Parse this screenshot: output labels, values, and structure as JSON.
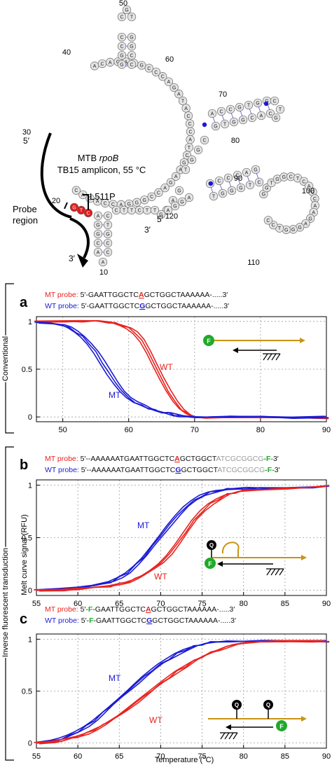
{
  "structure": {
    "title_prefix": "MTB",
    "title_gene": "rpoB",
    "subtitle": "TB15 amplicon, 55 °C",
    "mutation_label": "L511P",
    "probe_region_label_line1": "Probe",
    "probe_region_label_line2": "region",
    "end_5_top": "5′",
    "end_5_bottom": "5′",
    "end_3_top": "3′",
    "end_3_bottom": "3′",
    "pos_labels": [
      "10",
      "20",
      "30",
      "40",
      "50",
      "60",
      "70",
      "80",
      "90",
      "100",
      "110",
      "120"
    ],
    "upper_3prime_seq": [
      "C",
      "T",
      "T",
      "C",
      "T",
      "T"
    ],
    "highlight_color": "#dd1c1c",
    "highlight_nts": [
      "G",
      "T",
      "C"
    ]
  },
  "section_labels": {
    "conventional": "Conventional",
    "inverse": "Inverse fluorescent transduction"
  },
  "colors": {
    "mt": "#e8231f",
    "wt": "#1a1ad4",
    "probe_line": "#c99414",
    "fluor": "#1faa2a"
  },
  "legend_marks": {
    "fluor": "F",
    "quencher": "Q"
  },
  "chart_data": [
    {
      "panel": "a",
      "type": "line",
      "probes": [
        {
          "label": "MT probe:",
          "seq_before": "5′-GAATTGGCTC",
          "snp": "A",
          "seq_after": "GCTGGCTAAAAAA-",
          "tail": ".....3′"
        },
        {
          "label": "WT probe:",
          "seq_before": "5′-GAATTGGCTC",
          "snp": "G",
          "seq_after": "GCTGGCTAAAAAA-",
          "tail": ".....3′"
        }
      ],
      "xlim": [
        46,
        90
      ],
      "ylim": [
        -0.05,
        1.05
      ],
      "xticks": [
        "50",
        "60",
        "70",
        "80",
        "90"
      ],
      "yticks": [
        "0",
        "0.5",
        "1"
      ],
      "series": [
        {
          "name": "WT",
          "color": "#e8231f",
          "x": [
            46,
            50,
            53,
            55,
            57,
            58,
            59,
            60,
            61,
            62,
            63,
            64,
            65,
            66,
            67,
            68,
            69,
            70,
            72,
            75,
            80,
            85,
            90
          ],
          "y": [
            1.0,
            1.0,
            1.0,
            1.0,
            0.99,
            0.98,
            0.96,
            0.93,
            0.88,
            0.8,
            0.68,
            0.54,
            0.4,
            0.27,
            0.16,
            0.08,
            0.03,
            0.0,
            -0.01,
            0.0,
            0.0,
            0.0,
            -0.01
          ]
        },
        {
          "name": "MT",
          "color": "#1a1ad4",
          "x": [
            46,
            48,
            50,
            51,
            52,
            53,
            54,
            55,
            56,
            57,
            58,
            59,
            60,
            61,
            62,
            63,
            64,
            65,
            66,
            67,
            68,
            69,
            70,
            72,
            75,
            80,
            85,
            90
          ],
          "y": [
            0.99,
            0.98,
            0.96,
            0.93,
            0.89,
            0.84,
            0.77,
            0.68,
            0.57,
            0.46,
            0.36,
            0.27,
            0.2,
            0.15,
            0.12,
            0.09,
            0.07,
            0.05,
            0.04,
            0.02,
            0.01,
            0.01,
            0.0,
            0.0,
            0.0,
            0.0,
            -0.01,
            0.0
          ]
        }
      ]
    },
    {
      "panel": "b",
      "type": "line",
      "ylabel": "Melt curve signal (RFU)",
      "probes": [
        {
          "label": "MT probe:",
          "seq_before": "5′--AAAAAATGAATTGGCTC",
          "snp": "A",
          "seq_after": "GCTGGCT",
          "gray": "ATCGCGGCG",
          "fluor": "-F-",
          "tail": "3′"
        },
        {
          "label": "WT probe:",
          "seq_before": "5′--AAAAAATGAATTGGCTC",
          "snp": "G",
          "seq_after": "GCTGGCT",
          "gray": "ATCGCGGCG",
          "fluor": "-F-",
          "tail": "3′"
        }
      ],
      "xlim": [
        55,
        90
      ],
      "ylim": [
        -0.05,
        1.05
      ],
      "xticks": [
        "55",
        "60",
        "65",
        "70",
        "75",
        "80",
        "85",
        "90"
      ],
      "yticks": [
        "0",
        "0.5",
        "1"
      ],
      "series": [
        {
          "name": "MT",
          "color": "#1a1ad4",
          "x": [
            55,
            58,
            60,
            62,
            64,
            65,
            66,
            67,
            68,
            69,
            70,
            71,
            72,
            73,
            74,
            75,
            76,
            77,
            78,
            80,
            82,
            85,
            88,
            90
          ],
          "y": [
            0.0,
            0.01,
            0.02,
            0.04,
            0.08,
            0.12,
            0.17,
            0.24,
            0.32,
            0.42,
            0.52,
            0.62,
            0.71,
            0.79,
            0.85,
            0.9,
            0.93,
            0.95,
            0.96,
            0.97,
            0.97,
            0.98,
            0.98,
            0.99
          ]
        },
        {
          "name": "WT",
          "color": "#e8231f",
          "x": [
            55,
            58,
            60,
            62,
            64,
            65,
            66,
            67,
            68,
            69,
            70,
            71,
            72,
            73,
            74,
            75,
            76,
            77,
            78,
            79,
            80,
            82,
            85,
            88,
            90
          ],
          "y": [
            0.0,
            0.0,
            0.01,
            0.02,
            0.04,
            0.06,
            0.08,
            0.11,
            0.15,
            0.2,
            0.26,
            0.34,
            0.44,
            0.55,
            0.66,
            0.75,
            0.82,
            0.87,
            0.91,
            0.93,
            0.95,
            0.96,
            0.97,
            0.98,
            0.99
          ]
        }
      ]
    },
    {
      "panel": "c",
      "type": "line",
      "xlabel": "Temperature (°C)",
      "probes": [
        {
          "label": "MT probe:",
          "seq_before": "5′-",
          "fluor": "F",
          "seq_mid": "-GAATTGGCTC",
          "snp": "A",
          "seq_after": "GCTGGCTAAAAAA-",
          "tail": ".....3′"
        },
        {
          "label": "WT probe:",
          "seq_before": "5′-",
          "fluor": "F",
          "seq_mid": "-GAATTGGCTC",
          "snp": "G",
          "seq_after": "GCTGGCTAAAAAA-",
          "tail": ".....3′"
        }
      ],
      "xlim": [
        55,
        90
      ],
      "ylim": [
        -0.05,
        1.05
      ],
      "xticks": [
        "55",
        "60",
        "65",
        "70",
        "75",
        "80",
        "85",
        "90"
      ],
      "yticks": [
        "0",
        "0.5",
        "1"
      ],
      "series": [
        {
          "name": "MT",
          "color": "#1a1ad4",
          "x": [
            55,
            57,
            58,
            59,
            60,
            61,
            62,
            63,
            64,
            65,
            66,
            67,
            68,
            69,
            70,
            71,
            72,
            73,
            74,
            75,
            76,
            77,
            78,
            80,
            82,
            85,
            88,
            90
          ],
          "y": [
            0.0,
            0.02,
            0.04,
            0.07,
            0.11,
            0.16,
            0.22,
            0.29,
            0.36,
            0.43,
            0.5,
            0.57,
            0.64,
            0.7,
            0.76,
            0.81,
            0.86,
            0.9,
            0.93,
            0.95,
            0.97,
            0.98,
            0.98,
            0.98,
            0.98,
            0.98,
            0.98,
            0.98
          ]
        },
        {
          "name": "WT",
          "color": "#e8231f",
          "x": [
            55,
            57,
            58,
            59,
            60,
            61,
            62,
            63,
            64,
            65,
            66,
            67,
            68,
            69,
            70,
            71,
            72,
            73,
            74,
            75,
            76,
            77,
            78,
            79,
            80,
            82,
            85,
            88,
            90
          ],
          "y": [
            0.0,
            0.01,
            0.02,
            0.04,
            0.06,
            0.09,
            0.13,
            0.17,
            0.22,
            0.27,
            0.33,
            0.39,
            0.45,
            0.51,
            0.57,
            0.63,
            0.69,
            0.74,
            0.79,
            0.83,
            0.87,
            0.9,
            0.93,
            0.95,
            0.96,
            0.97,
            0.98,
            0.98,
            0.98
          ]
        }
      ]
    }
  ]
}
